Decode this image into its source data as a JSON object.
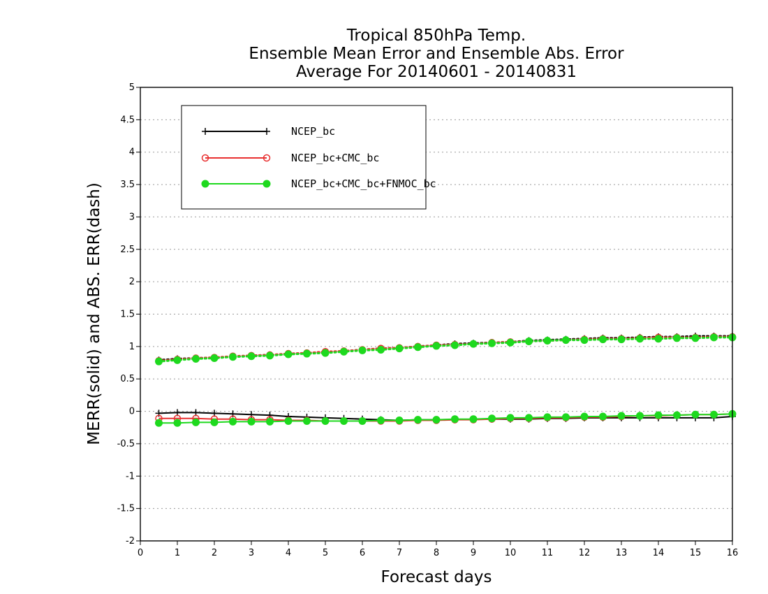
{
  "chart_data": {
    "type": "line",
    "title": [
      "Tropical 850hPa Temp.",
      "Ensemble Mean Error and Ensemble Abs. Error",
      "Average For 20140601 - 20140831"
    ],
    "xlabel": "Forecast days",
    "ylabel": "MERR(solid) and ABS. ERR(dash)",
    "xlim": [
      0,
      16
    ],
    "ylim": [
      -2,
      5
    ],
    "xticks": [
      0,
      1,
      2,
      3,
      4,
      5,
      6,
      7,
      8,
      9,
      10,
      11,
      12,
      13,
      14,
      15,
      16
    ],
    "yticks": [
      -2,
      -1.5,
      -1,
      -0.5,
      0,
      0.5,
      1,
      1.5,
      2,
      2.5,
      3,
      3.5,
      4,
      4.5,
      5
    ],
    "ytick_labels": [
      "-2",
      "-1.5",
      "-1",
      "-0.5",
      "0",
      "0.5",
      "1",
      "1.5",
      "2",
      "2.5",
      "3",
      "3.5",
      "4",
      "4.5",
      "5"
    ],
    "grid": "horizontal dotted",
    "legend_position": "top-left",
    "x": [
      0.5,
      1,
      1.5,
      2,
      2.5,
      3,
      3.5,
      4,
      4.5,
      5,
      5.5,
      6,
      6.5,
      7,
      7.5,
      8,
      8.5,
      9,
      9.5,
      10,
      10.5,
      11,
      11.5,
      12,
      12.5,
      13,
      13.5,
      14,
      14.5,
      15,
      15.5,
      16
    ],
    "series": [
      {
        "name": "NCEP_bc",
        "color": "#000000",
        "marker": "plus",
        "merr": [
          -0.03,
          -0.02,
          -0.02,
          -0.03,
          -0.04,
          -0.05,
          -0.06,
          -0.08,
          -0.09,
          -0.1,
          -0.11,
          -0.12,
          -0.13,
          -0.14,
          -0.13,
          -0.13,
          -0.13,
          -0.12,
          -0.12,
          -0.12,
          -0.12,
          -0.11,
          -0.11,
          -0.1,
          -0.1,
          -0.1,
          -0.1,
          -0.1,
          -0.1,
          -0.1,
          -0.1,
          -0.08
        ],
        "abs_err": [
          0.79,
          0.81,
          0.82,
          0.83,
          0.84,
          0.86,
          0.87,
          0.88,
          0.9,
          0.91,
          0.93,
          0.95,
          0.97,
          0.98,
          1.0,
          1.02,
          1.04,
          1.05,
          1.06,
          1.07,
          1.09,
          1.1,
          1.11,
          1.12,
          1.13,
          1.13,
          1.14,
          1.15,
          1.15,
          1.16,
          1.16,
          1.16
        ]
      },
      {
        "name": "NCEP_bc+CMC_bc",
        "color": "#e83030",
        "marker": "open-circle",
        "merr": [
          -0.11,
          -0.11,
          -0.11,
          -0.12,
          -0.12,
          -0.13,
          -0.13,
          -0.14,
          -0.14,
          -0.15,
          -0.15,
          -0.15,
          -0.15,
          -0.15,
          -0.14,
          -0.14,
          -0.13,
          -0.13,
          -0.12,
          -0.11,
          -0.11,
          -0.1,
          -0.1,
          -0.09,
          -0.09,
          -0.08,
          -0.07,
          -0.07,
          -0.06,
          -0.05,
          -0.05,
          -0.04
        ],
        "abs_err": [
          0.78,
          0.8,
          0.82,
          0.83,
          0.85,
          0.86,
          0.87,
          0.89,
          0.9,
          0.92,
          0.93,
          0.95,
          0.97,
          0.98,
          1.0,
          1.02,
          1.03,
          1.04,
          1.06,
          1.07,
          1.08,
          1.09,
          1.1,
          1.11,
          1.12,
          1.12,
          1.13,
          1.14,
          1.14,
          1.14,
          1.15,
          1.15
        ]
      },
      {
        "name": "NCEP_bc+CMC_bc+FNMOC_bc",
        "color": "#1ed91e",
        "marker": "filled-circle",
        "merr": [
          -0.18,
          -0.18,
          -0.17,
          -0.17,
          -0.16,
          -0.16,
          -0.16,
          -0.15,
          -0.15,
          -0.15,
          -0.15,
          -0.15,
          -0.14,
          -0.14,
          -0.13,
          -0.13,
          -0.12,
          -0.12,
          -0.11,
          -0.1,
          -0.1,
          -0.09,
          -0.09,
          -0.08,
          -0.08,
          -0.07,
          -0.07,
          -0.06,
          -0.06,
          -0.05,
          -0.05,
          -0.04
        ],
        "abs_err": [
          0.77,
          0.79,
          0.81,
          0.82,
          0.84,
          0.85,
          0.86,
          0.88,
          0.89,
          0.9,
          0.92,
          0.94,
          0.95,
          0.97,
          0.99,
          1.01,
          1.02,
          1.04,
          1.05,
          1.06,
          1.08,
          1.09,
          1.1,
          1.1,
          1.11,
          1.11,
          1.12,
          1.12,
          1.13,
          1.13,
          1.14,
          1.14
        ]
      }
    ]
  }
}
